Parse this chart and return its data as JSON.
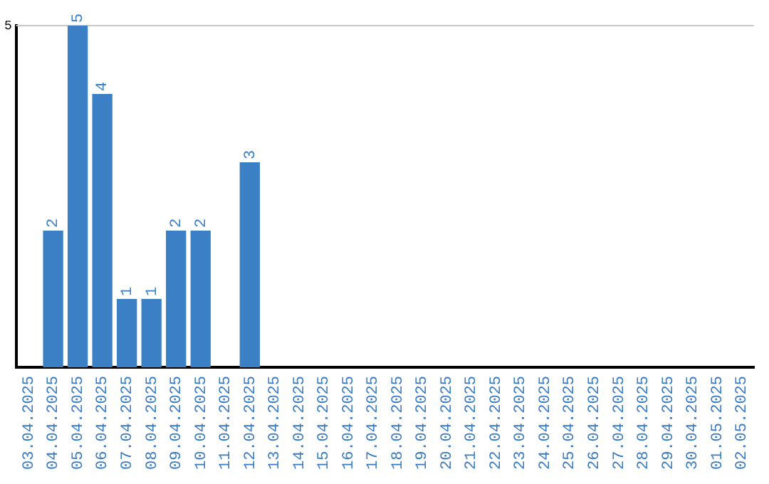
{
  "chart_data": {
    "type": "bar",
    "categories": [
      "03.04.2025",
      "04.04.2025",
      "05.04.2025",
      "06.04.2025",
      "07.04.2025",
      "08.04.2025",
      "09.04.2025",
      "10.04.2025",
      "11.04.2025",
      "12.04.2025",
      "13.04.2025",
      "14.04.2025",
      "15.04.2025",
      "16.04.2025",
      "17.04.2025",
      "18.04.2025",
      "19.04.2025",
      "20.04.2025",
      "21.04.2025",
      "22.04.2025",
      "23.04.2025",
      "24.04.2025",
      "25.04.2025",
      "26.04.2025",
      "27.04.2025",
      "28.04.2025",
      "29.04.2025",
      "30.04.2025",
      "01.05.2025",
      "02.05.2025"
    ],
    "values": [
      0,
      2,
      5,
      4,
      1,
      1,
      2,
      2,
      0,
      3,
      0,
      0,
      0,
      0,
      0,
      0,
      0,
      0,
      0,
      0,
      0,
      0,
      0,
      0,
      0,
      0,
      0,
      0,
      0,
      0
    ],
    "value_labels": [
      null,
      "2",
      "5",
      "4",
      "1",
      "1",
      "2",
      "2",
      null,
      "3",
      null,
      null,
      null,
      null,
      null,
      null,
      null,
      null,
      null,
      null,
      null,
      null,
      null,
      null,
      null,
      null,
      null,
      null,
      null,
      null
    ],
    "color": "#3b7fc4",
    "ylim": [
      0,
      5
    ],
    "yticks": [
      5
    ],
    "ref_lines": [
      {
        "axis": "y",
        "value": 5,
        "color": "#c8c8c8"
      }
    ],
    "legend": false
  }
}
